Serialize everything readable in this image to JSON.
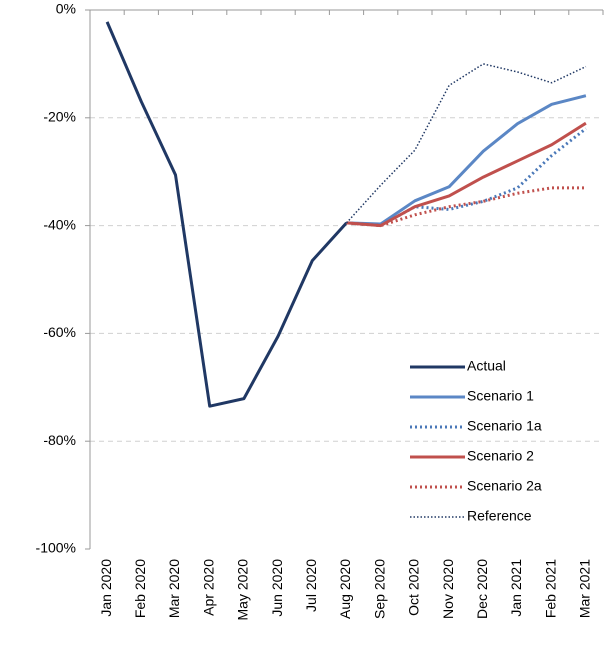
{
  "chart_data": {
    "type": "line",
    "categories": [
      "Jan 2020",
      "Feb 2020",
      "Mar 2020",
      "Apr 2020",
      "May 2020",
      "Jun 2020",
      "Jul 2020",
      "Aug 2020",
      "Sep 2020",
      "Oct 2020",
      "Nov 2020",
      "Dec 2020",
      "Jan 2021",
      "Feb 2021",
      "Mar 2021"
    ],
    "series": [
      {
        "name": "Actual",
        "color": "#203864",
        "width": 3,
        "dash": "solid",
        "values": [
          -2.2,
          -17,
          -30.6,
          -73.5,
          -72.1,
          -60.5,
          -46.5,
          -39.5,
          null,
          null,
          null,
          null,
          null,
          null,
          null
        ]
      },
      {
        "name": "Scenario 1",
        "color": "#5b87c5",
        "width": 3,
        "dash": "solid",
        "values": [
          null,
          null,
          null,
          null,
          null,
          null,
          null,
          -39.5,
          -39.7,
          -35.4,
          -32.8,
          -26.2,
          -21.1,
          -17.5,
          -15.9
        ]
      },
      {
        "name": "Scenario 1a",
        "color": "#4a78b8",
        "width": 3,
        "dash": "dotted",
        "values": [
          null,
          null,
          null,
          null,
          null,
          null,
          null,
          -39.5,
          -40,
          -36.5,
          -37,
          -35.5,
          -33,
          -27,
          -22
        ]
      },
      {
        "name": "Scenario 2",
        "color": "#c0504d",
        "width": 3,
        "dash": "solid",
        "values": [
          null,
          null,
          null,
          null,
          null,
          null,
          null,
          -39.5,
          -40,
          -36.5,
          -34.5,
          -31,
          -28,
          -25,
          -21
        ]
      },
      {
        "name": "Scenario 2a",
        "color": "#c0504d",
        "width": 3,
        "dash": "dotted",
        "values": [
          null,
          null,
          null,
          null,
          null,
          null,
          null,
          -39.5,
          -40,
          -38,
          -36.5,
          -35.5,
          -34,
          -33,
          -33
        ]
      },
      {
        "name": "Reference",
        "color": "#203864",
        "width": 1.5,
        "dash": "dotted",
        "values": [
          null,
          null,
          null,
          null,
          null,
          null,
          null,
          -39.5,
          -32.5,
          -26,
          -14,
          -10,
          -11.5,
          -13.5,
          -10.5
        ]
      }
    ],
    "ylim": [
      -100,
      0
    ],
    "yticks": [
      {
        "value": -100,
        "label": "-100%"
      },
      {
        "value": -80,
        "label": "-80%"
      },
      {
        "value": -60,
        "label": "-60%"
      },
      {
        "value": -40,
        "label": "-40%"
      },
      {
        "value": -20,
        "label": "-20%"
      },
      {
        "value": 0,
        "label": "0%"
      }
    ],
    "grid": true,
    "legend": "lower right"
  }
}
